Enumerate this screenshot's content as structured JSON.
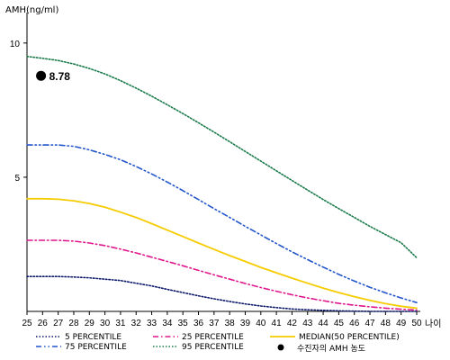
{
  "chart_data": {
    "type": "line",
    "ylabel": "AMH(ng/ml)",
    "xlabel": "나이",
    "x": [
      25,
      26,
      27,
      28,
      29,
      30,
      31,
      32,
      33,
      34,
      35,
      36,
      37,
      38,
      39,
      40,
      41,
      42,
      43,
      44,
      45,
      46,
      47,
      48,
      49,
      50
    ],
    "xlim": [
      25,
      50
    ],
    "ylim": [
      0,
      11
    ],
    "yticks": [
      5,
      10
    ],
    "grid": false,
    "legend_position": "bottom",
    "series": [
      {
        "name": "5 PERCENTILE",
        "color": "#0d1a6b",
        "style": "dotted",
        "values": [
          1.3,
          1.3,
          1.3,
          1.28,
          1.25,
          1.2,
          1.15,
          1.05,
          0.95,
          0.82,
          0.7,
          0.58,
          0.47,
          0.37,
          0.28,
          0.2,
          0.14,
          0.09,
          0.06,
          0.04,
          0.02,
          0.01,
          0.0,
          0.0,
          0.0,
          0.0
        ]
      },
      {
        "name": "25 PERCENTILE",
        "color": "#e0168c",
        "style": "dashdot",
        "values": [
          2.65,
          2.65,
          2.65,
          2.62,
          2.55,
          2.45,
          2.32,
          2.18,
          2.02,
          1.86,
          1.7,
          1.53,
          1.36,
          1.2,
          1.04,
          0.89,
          0.75,
          0.62,
          0.5,
          0.4,
          0.3,
          0.23,
          0.17,
          0.12,
          0.08,
          0.05
        ]
      },
      {
        "name": "MEDIAN(50 PERCENTILE)",
        "color": "#f5cc00",
        "style": "solid",
        "values": [
          4.2,
          4.2,
          4.18,
          4.12,
          4.02,
          3.88,
          3.7,
          3.5,
          3.27,
          3.03,
          2.79,
          2.55,
          2.31,
          2.08,
          1.86,
          1.64,
          1.44,
          1.24,
          1.05,
          0.87,
          0.7,
          0.55,
          0.41,
          0.29,
          0.19,
          0.12
        ]
      },
      {
        "name": "75 PERCENTILE",
        "color": "#2255cc",
        "style": "dashdotdot",
        "values": [
          6.2,
          6.2,
          6.2,
          6.15,
          6.02,
          5.85,
          5.65,
          5.4,
          5.12,
          4.82,
          4.5,
          4.17,
          3.83,
          3.5,
          3.17,
          2.85,
          2.53,
          2.22,
          1.93,
          1.65,
          1.38,
          1.13,
          0.9,
          0.69,
          0.5,
          0.33
        ]
      },
      {
        "name": "95 PERCENTILE",
        "color": "#1a7a4a",
        "style": "dotted",
        "values": [
          9.5,
          9.43,
          9.35,
          9.22,
          9.05,
          8.85,
          8.6,
          8.32,
          8.02,
          7.7,
          7.37,
          7.03,
          6.68,
          6.32,
          5.96,
          5.6,
          5.24,
          4.88,
          4.52,
          4.17,
          3.83,
          3.5,
          3.17,
          2.86,
          2.56,
          2.0
        ]
      }
    ],
    "point": {
      "name": "수진자의 AMH 농도",
      "x": 25.9,
      "y": 8.78,
      "label": "8.78",
      "color": "#000000"
    }
  }
}
